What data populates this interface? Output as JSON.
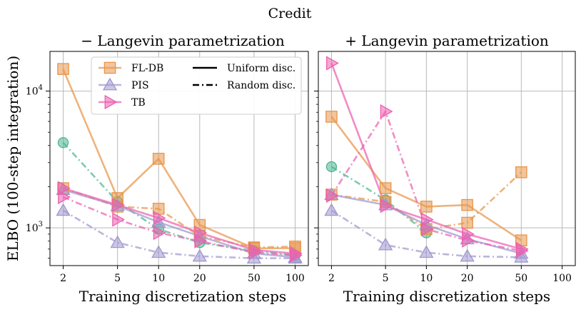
{
  "figure": {
    "suptitle": "Credit",
    "ylabel": "ELBO (100-step integration)",
    "xlabel": "Training discretization steps"
  },
  "legend": {
    "methods": [
      {
        "label": "FL-DB",
        "color": "#E8954A",
        "marker": "square"
      },
      {
        "label": "PIS",
        "color": "#9F98CF",
        "marker": "triangle-up"
      },
      {
        "label": "TB",
        "color": "#EC5FAE",
        "marker": "triangle-right"
      }
    ],
    "styles": [
      {
        "label": "Uniform disc.",
        "dash": "solid"
      },
      {
        "label": "Random disc.",
        "dash": "dashdot"
      }
    ]
  },
  "chart_data": [
    {
      "type": "line",
      "title": "− Langevin parametrization",
      "xscale": "log",
      "yscale": "log",
      "x_ticks": [
        2,
        5,
        10,
        20,
        50,
        100
      ],
      "x_tick_labels": [
        "2",
        "5",
        "10",
        "20",
        "50",
        "100"
      ],
      "y_ticks": [
        1000,
        10000
      ],
      "y_tick_labels": [
        "10^3",
        "10^4"
      ],
      "xlim": [
        1.6,
        125
      ],
      "ylim": [
        530,
        19500
      ],
      "series": [
        {
          "name": "Random disc. (green)",
          "color": "#4DB58F",
          "dash": "dashdot",
          "marker": "circle",
          "x": [
            2,
            5,
            10,
            20,
            50,
            100
          ],
          "y": [
            4200,
            1550,
            980,
            780,
            680,
            630
          ]
        },
        {
          "name": "FL-DB Uniform disc.",
          "color": "#E8954A",
          "dash": "solid",
          "marker": "square",
          "x": [
            2,
            5,
            10,
            20,
            50,
            100
          ],
          "y": [
            14500,
            1650,
            3200,
            1050,
            710,
            710
          ]
        },
        {
          "name": "FL-DB Random disc.",
          "color": "#E8954A",
          "dash": "dashdot",
          "marker": "square",
          "x": [
            2,
            5,
            10,
            20,
            50,
            100
          ],
          "y": [
            1950,
            1430,
            1380,
            870,
            720,
            730
          ]
        },
        {
          "name": "PIS Uniform disc.",
          "color": "#9F98CF",
          "dash": "solid",
          "marker": "triangle-up",
          "x": [
            2,
            5,
            10,
            20,
            50,
            100
          ],
          "y": [
            1900,
            1450,
            1100,
            870,
            650,
            610
          ]
        },
        {
          "name": "PIS Random disc.",
          "color": "#9F98CF",
          "dash": "dashdot",
          "marker": "triangle-up",
          "x": [
            2,
            5,
            10,
            20,
            50,
            100
          ],
          "y": [
            1340,
            780,
            660,
            620,
            600,
            600
          ]
        },
        {
          "name": "TB Uniform disc.",
          "color": "#EC5FAE",
          "dash": "solid",
          "marker": "triangle-right",
          "x": [
            2,
            5,
            10,
            20,
            50,
            100
          ],
          "y": [
            1950,
            1470,
            1180,
            920,
            690,
            650
          ]
        },
        {
          "name": "TB Random disc.",
          "color": "#EC5FAE",
          "dash": "dashdot",
          "marker": "triangle-right",
          "x": [
            2,
            5,
            10,
            20,
            50,
            100
          ],
          "y": [
            1680,
            1150,
            920,
            800,
            660,
            630
          ]
        }
      ]
    },
    {
      "type": "line",
      "title": "+ Langevin parametrization",
      "xscale": "log",
      "yscale": "log",
      "x_ticks": [
        2,
        5,
        10,
        20,
        50,
        100
      ],
      "x_tick_labels": [
        "2",
        "5",
        "10",
        "20",
        "50",
        "100"
      ],
      "y_ticks": [
        1000,
        10000
      ],
      "y_tick_labels": [
        "",
        ""
      ],
      "xlim": [
        1.6,
        125
      ],
      "ylim": [
        530,
        19500
      ],
      "series": [
        {
          "name": "Random disc. (green)",
          "color": "#4DB58F",
          "dash": "dashdot",
          "marker": "circle",
          "x": [
            2,
            5,
            10
          ],
          "y": [
            2800,
            1600,
            920
          ]
        },
        {
          "name": "FL-DB Uniform disc.",
          "color": "#E8954A",
          "dash": "solid",
          "marker": "square",
          "x": [
            2,
            5,
            10,
            20,
            50
          ],
          "y": [
            6500,
            1950,
            1430,
            1470,
            810
          ]
        },
        {
          "name": "FL-DB Random disc.",
          "color": "#E8954A",
          "dash": "dashdot",
          "marker": "square",
          "x": [
            2,
            5,
            10,
            20,
            50
          ],
          "y": [
            1750,
            1550,
            980,
            1090,
            2550
          ]
        },
        {
          "name": "PIS Uniform disc.",
          "color": "#9F98CF",
          "dash": "solid",
          "marker": "triangle-up",
          "x": [
            2,
            5,
            10,
            20,
            50
          ],
          "y": [
            1750,
            1470,
            1050,
            830,
            650
          ]
        },
        {
          "name": "PIS Random disc.",
          "color": "#9F98CF",
          "dash": "dashdot",
          "marker": "triangle-up",
          "x": [
            2,
            5,
            10,
            20,
            50
          ],
          "y": [
            1340,
            750,
            660,
            620,
            610
          ]
        },
        {
          "name": "TB Uniform disc.",
          "color": "#EC5FAE",
          "dash": "solid",
          "marker": "triangle-right",
          "x": [
            2,
            5,
            10,
            20,
            50
          ],
          "y": [
            16000,
            1450,
            1150,
            900,
            700
          ]
        },
        {
          "name": "TB Random disc.",
          "color": "#EC5FAE",
          "dash": "dashdot",
          "marker": "triangle-right",
          "x": [
            2,
            5,
            10,
            20,
            50
          ],
          "y": [
            1720,
            7100,
            980,
            810,
            680
          ]
        }
      ]
    }
  ]
}
